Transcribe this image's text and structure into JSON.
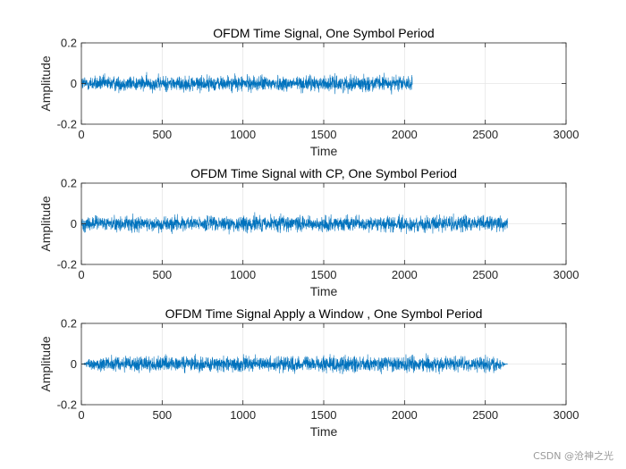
{
  "watermark": "CSDN @沧神之光",
  "chart_data": [
    {
      "type": "line",
      "title": "OFDM Time Signal, One Symbol Period",
      "xlabel": "Time",
      "ylabel": "Amplitude",
      "xlim": [
        0,
        3000
      ],
      "ylim": [
        -0.2,
        0.2
      ],
      "xticks": [
        0,
        500,
        1000,
        1500,
        2000,
        2500,
        3000
      ],
      "yticks": [
        -0.2,
        0,
        0.2
      ],
      "xtick_labels": [
        "0",
        "500",
        "1000",
        "1500",
        "2000",
        "2500",
        "3000"
      ],
      "ytick_labels": [
        "-0.2",
        "0",
        "0.2"
      ],
      "grid": true,
      "series": [
        {
          "color": "#0072BD",
          "x_range": [
            1,
            2048
          ],
          "mean": 0,
          "amplitude_range": [
            -0.06,
            0.06
          ],
          "window": "none"
        }
      ]
    },
    {
      "type": "line",
      "title": "OFDM Time Signal with CP, One Symbol Period",
      "xlabel": "Time",
      "ylabel": "Amplitude",
      "xlim": [
        0,
        3000
      ],
      "ylim": [
        -0.2,
        0.2
      ],
      "xticks": [
        0,
        500,
        1000,
        1500,
        2000,
        2500,
        3000
      ],
      "yticks": [
        -0.2,
        0,
        0.2
      ],
      "xtick_labels": [
        "0",
        "500",
        "1000",
        "1500",
        "2000",
        "2500",
        "3000"
      ],
      "ytick_labels": [
        "-0.2",
        "0",
        "0.2"
      ],
      "grid": true,
      "series": [
        {
          "color": "#0072BD",
          "x_range": [
            1,
            2640
          ],
          "mean": 0,
          "amplitude_range": [
            -0.06,
            0.06
          ],
          "window": "none"
        }
      ]
    },
    {
      "type": "line",
      "title": "OFDM Time Signal Apply a Window , One Symbol Period",
      "xlabel": "Time",
      "ylabel": "Amplitude",
      "xlim": [
        0,
        3000
      ],
      "ylim": [
        -0.2,
        0.2
      ],
      "xticks": [
        0,
        500,
        1000,
        1500,
        2000,
        2500,
        3000
      ],
      "yticks": [
        -0.2,
        0,
        0.2
      ],
      "xtick_labels": [
        "0",
        "500",
        "1000",
        "1500",
        "2000",
        "2500",
        "3000"
      ],
      "ytick_labels": [
        "-0.2",
        "0",
        "0.2"
      ],
      "grid": true,
      "series": [
        {
          "color": "#0072BD",
          "x_range": [
            1,
            2640
          ],
          "mean": 0,
          "amplitude_range": [
            -0.06,
            0.06
          ],
          "window": "tapered",
          "taper": [
            70,
            2560
          ]
        }
      ]
    }
  ]
}
